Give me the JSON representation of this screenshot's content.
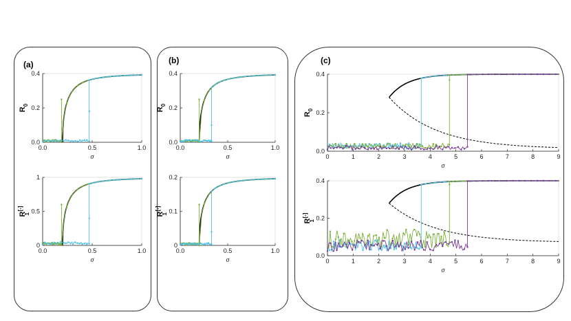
{
  "panels": [
    {
      "label": "(a)"
    },
    {
      "label": "(b)"
    },
    {
      "label": "(c)"
    }
  ],
  "colors": {
    "green": "#7db03a",
    "blue": "#4ec1e6",
    "purple": "#7a3a9a",
    "black": "#000000"
  },
  "chart_data": [
    {
      "id": "a-top",
      "type": "line",
      "panel": "(a)",
      "xlabel": "σ",
      "ylabel": "R",
      "ylabel_sub": "0",
      "xlim": [
        0,
        1
      ],
      "ylim": [
        0,
        0.4
      ],
      "xticks": [
        "0.0",
        "0.5",
        "1.0"
      ],
      "yticks": [
        "0.0",
        "0.2",
        "0.4"
      ],
      "theory": {
        "label": "theory (black)",
        "sigma_c": 0.2,
        "amp": 0.4
      },
      "series": [
        {
          "name": "green",
          "color": "#7db03a",
          "jump": 0.19,
          "jump_top": 0.25,
          "amp": 0.4,
          "noise": 0.01
        },
        {
          "name": "blue",
          "color": "#4ec1e6",
          "jump": 0.47,
          "jump_top": 0.18,
          "amp": 0.4,
          "noise": 0.01
        }
      ]
    },
    {
      "id": "a-bottom",
      "type": "line",
      "panel": "(a)",
      "xlabel": "σ",
      "ylabel": "R",
      "ylabel_sub": "1",
      "ylabel_sup": "[-]",
      "xlim": [
        0,
        1
      ],
      "ylim": [
        0,
        1
      ],
      "xticks": [
        "0.0",
        "0.5",
        "1.0"
      ],
      "yticks": [
        "0",
        "0.5",
        "1"
      ],
      "theory": {
        "label": "theory (black)",
        "sigma_c": 0.2,
        "amp": 1.0
      },
      "series": [
        {
          "name": "green",
          "color": "#7db03a",
          "jump": 0.19,
          "jump_top": 0.6,
          "amp": 1.0,
          "noise": 0.03
        },
        {
          "name": "blue",
          "color": "#4ec1e6",
          "jump": 0.47,
          "jump_top": 0.4,
          "amp": 1.0,
          "noise": 0.04
        }
      ]
    },
    {
      "id": "b-top",
      "type": "line",
      "panel": "(b)",
      "xlabel": "σ",
      "ylabel": "R",
      "ylabel_sub": "0",
      "xlim": [
        0,
        1
      ],
      "ylim": [
        0,
        0.4
      ],
      "xticks": [
        "0.0",
        "0.5",
        "1.0"
      ],
      "yticks": [
        "0.0",
        "0.2",
        "0.4"
      ],
      "theory": {
        "label": "theory (black)",
        "sigma_c": 0.2,
        "amp": 0.4
      },
      "series": [
        {
          "name": "green",
          "color": "#7db03a",
          "jump": 0.2,
          "jump_top": 0.25,
          "amp": 0.4,
          "noise": 0.01
        },
        {
          "name": "blue",
          "color": "#4ec1e6",
          "jump": 0.33,
          "jump_top": 0.1,
          "amp": 0.4,
          "noise": 0.01
        }
      ]
    },
    {
      "id": "b-bottom",
      "type": "line",
      "panel": "(b)",
      "xlabel": "σ",
      "ylabel": "R",
      "ylabel_sub": "1",
      "ylabel_sup": "[-]",
      "xlim": [
        0,
        1
      ],
      "ylim": [
        0,
        0.2
      ],
      "xticks": [
        "0.0",
        "0.5",
        "1.0"
      ],
      "yticks": [
        "0",
        "0.1",
        "0.2"
      ],
      "theory": {
        "label": "theory (black)",
        "sigma_c": 0.2,
        "amp": 0.2
      },
      "series": [
        {
          "name": "green",
          "color": "#7db03a",
          "jump": 0.2,
          "jump_top": 0.12,
          "amp": 0.2,
          "noise": 0.005
        },
        {
          "name": "blue",
          "color": "#4ec1e6",
          "jump": 0.33,
          "jump_top": 0.04,
          "amp": 0.2,
          "noise": 0.005
        }
      ]
    },
    {
      "id": "c-top",
      "type": "line",
      "panel": "(c)",
      "xlabel": "σ",
      "ylabel": "R",
      "ylabel_sub": "0",
      "xlim": [
        0,
        9
      ],
      "ylim": [
        0,
        0.4
      ],
      "xticks": [
        "0",
        "1",
        "2",
        "3",
        "4",
        "5",
        "6",
        "7",
        "8",
        "9"
      ],
      "yticks": [
        "0.0",
        "0.2",
        "0.4"
      ],
      "theory": {
        "label": "theory (black)",
        "sigma_c": 2.4,
        "amp": 0.4,
        "unstable_branch": true
      },
      "series": [
        {
          "name": "blue",
          "color": "#4ec1e6",
          "jump": 3.65,
          "amp": 0.4,
          "noise": 0.03
        },
        {
          "name": "green",
          "color": "#7db03a",
          "jump": 4.75,
          "jump_top": 0.37,
          "amp": 0.4,
          "noise": 0.03
        },
        {
          "name": "purple",
          "color": "#7a3a9a",
          "jump": 5.45,
          "amp": 0.4,
          "noise": 0.02
        }
      ]
    },
    {
      "id": "c-bottom",
      "type": "line",
      "panel": "(c)",
      "xlabel": "σ",
      "ylabel": "R",
      "ylabel_sub": "1",
      "ylabel_sup": "[-]",
      "xlim": [
        0,
        9
      ],
      "ylim": [
        0,
        0.4
      ],
      "xticks": [
        "0",
        "1",
        "2",
        "3",
        "4",
        "5",
        "6",
        "7",
        "8",
        "9"
      ],
      "yticks": [
        "0.0",
        "0.2",
        "0.4"
      ],
      "theory": {
        "label": "theory (black)",
        "sigma_c": 2.4,
        "amp": 0.4,
        "unstable_branch": true
      },
      "series": [
        {
          "name": "blue",
          "color": "#4ec1e6",
          "jump": 3.65,
          "amp": 0.4,
          "noise": 0.06
        },
        {
          "name": "green",
          "color": "#7db03a",
          "jump": 4.75,
          "jump_top": 0.38,
          "amp": 0.4,
          "noise": 0.1
        },
        {
          "name": "purple",
          "color": "#7a3a9a",
          "jump": 5.45,
          "amp": 0.4,
          "noise": 0.06
        }
      ]
    }
  ]
}
